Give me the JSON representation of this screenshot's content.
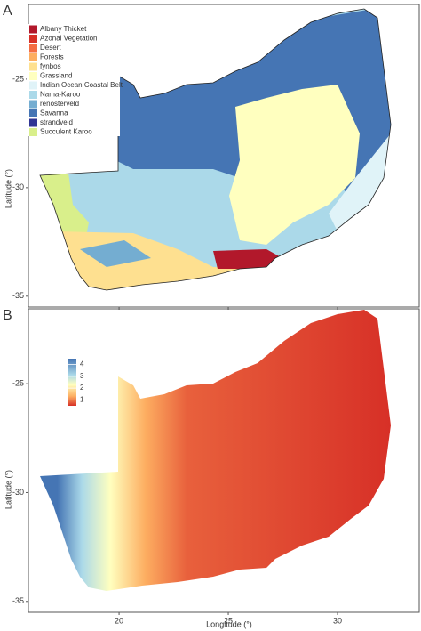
{
  "x_axis": {
    "label": "Longitude (°)",
    "xlim": [
      15.85,
      33.74
    ],
    "xticks": [
      20,
      25,
      30
    ]
  },
  "panels": [
    {
      "label": "A",
      "ylabel": "Latitude (°)",
      "ylim": [
        -35.5,
        -21.56
      ],
      "yticks": [
        -25,
        -30,
        -35
      ]
    },
    {
      "label": "B",
      "ylabel": "Latitude (°)",
      "ylim": [
        -35.5,
        -21.56
      ],
      "yticks": [
        -25,
        -30,
        -35
      ]
    }
  ],
  "legend": [
    {
      "name": "Albany Thicket",
      "color": "#b2182b"
    },
    {
      "name": "Azonal Vegetation",
      "color": "#d73027"
    },
    {
      "name": "Desert",
      "color": "#f46d43"
    },
    {
      "name": "Forests",
      "color": "#fdae61"
    },
    {
      "name": "fynbos",
      "color": "#fee090"
    },
    {
      "name": "Grassland",
      "color": "#ffffbf"
    },
    {
      "name": "Indian Ocean Coastal Belt",
      "color": "#e0f3f8"
    },
    {
      "name": "Nama-Karoo",
      "color": "#abd9e9"
    },
    {
      "name": "renosterveld",
      "color": "#74add1"
    },
    {
      "name": "Savanna",
      "color": "#4575b4"
    },
    {
      "name": "strandveld",
      "color": "#313695"
    },
    {
      "name": "Succulent Karoo",
      "color": "#d9ef8b"
    }
  ],
  "colorbar": {
    "lim": [
      0.5,
      4.5
    ],
    "ticks": [
      1,
      2,
      3,
      4
    ]
  }
}
